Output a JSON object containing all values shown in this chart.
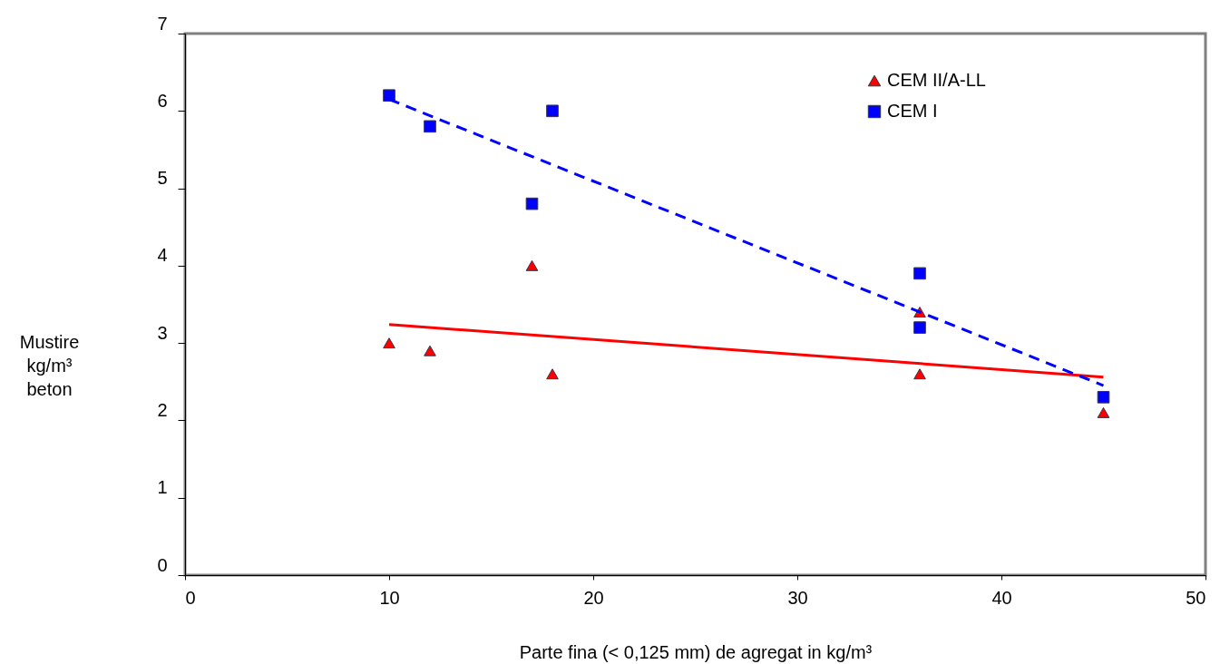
{
  "chart_data": {
    "type": "scatter",
    "xlabel": "Parte fina (< 0,125 mm) de agregat in kg/m³",
    "ylabel": "Mustire\nkg/m³\nbeton",
    "xlim": [
      0,
      50
    ],
    "xticks": [
      0,
      10,
      20,
      30,
      40,
      50
    ],
    "ylim": [
      0,
      7
    ],
    "yticks": [
      0,
      1,
      2,
      3,
      4,
      5,
      6,
      7
    ],
    "grid": false,
    "legend": "top right",
    "series": [
      {
        "name": "CEM II/A-LL",
        "type": "scatter",
        "marker": "triangle",
        "color": "#ff0000",
        "x": [
          10,
          12,
          17,
          18,
          36,
          36,
          45
        ],
        "values": [
          3.0,
          2.9,
          4.0,
          2.6,
          3.4,
          2.6,
          2.1
        ]
      },
      {
        "name": "CEM I",
        "type": "scatter",
        "marker": "square",
        "color": "#0000ff",
        "x": [
          10,
          12,
          17,
          18,
          36,
          36,
          45
        ],
        "values": [
          6.2,
          5.8,
          4.8,
          6.0,
          3.9,
          3.2,
          2.3
        ]
      },
      {
        "type": "line",
        "line_style": "solid",
        "color": "#ff0000",
        "x": [
          10,
          45
        ],
        "values": [
          3.24,
          2.56
        ]
      },
      {
        "type": "line",
        "line_style": "dashed",
        "color": "#0000ff",
        "x": [
          10,
          45
        ],
        "values": [
          6.15,
          2.45
        ]
      }
    ]
  }
}
